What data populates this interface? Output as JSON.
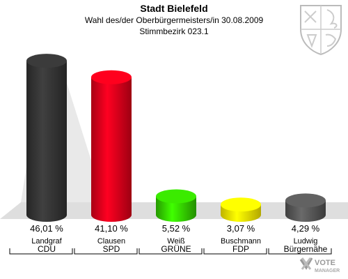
{
  "header": {
    "title": "Stadt Bielefeld",
    "subtitle": "Wahl des/der Oberbürgermeisters/in 30.08.2009",
    "district": "Stimmbezirk 023.1"
  },
  "branding": {
    "logo_text": "VOTE",
    "logo_subtext": "MANAGER"
  },
  "chart_data": {
    "type": "bar",
    "candidates": [
      "Landgraf",
      "Clausen",
      "Weiß",
      "Buschmann",
      "Ludwig"
    ],
    "categories": [
      "CDU",
      "SPD",
      "GRÜNE",
      "FDP",
      "Bürgernähe"
    ],
    "values": [
      46.01,
      41.1,
      5.52,
      3.07,
      4.29
    ],
    "value_labels": [
      "46,01 %",
      "41,10 %",
      "5,52 %",
      "3,07 %",
      "4,29 %"
    ],
    "colors": [
      "#333333",
      "#e0001a",
      "#33cc00",
      "#ffee00",
      "#555555"
    ],
    "unit": "%"
  }
}
